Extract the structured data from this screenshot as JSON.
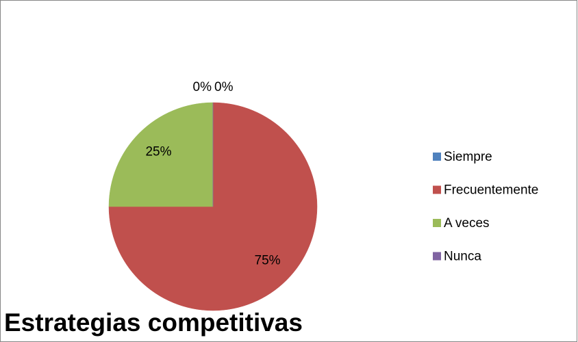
{
  "chart_data": {
    "type": "pie",
    "title": "Estrategias competitivas",
    "categories": [
      "Siempre",
      "Frecuentemente",
      "A veces",
      "Nunca"
    ],
    "values": [
      0,
      75,
      25,
      0
    ],
    "value_labels": [
      "0%",
      "75%",
      "25%",
      "0%"
    ],
    "colors": [
      "#4f81bd",
      "#c0504d",
      "#9bbb59",
      "#8064a2"
    ],
    "legend": "right"
  }
}
